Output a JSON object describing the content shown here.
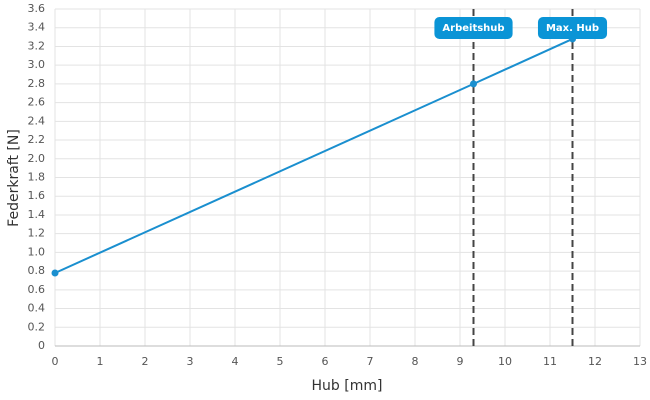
{
  "chart_data": {
    "type": "line",
    "x_label": "Hub [mm]",
    "y_label": "Federkraft [N]",
    "x": [
      0,
      9.3,
      11.5
    ],
    "values": [
      0.78,
      2.8,
      3.28
    ],
    "color": "#1a8fcf",
    "xlim": [
      0,
      13
    ],
    "xticks": [
      0,
      1,
      2,
      3,
      4,
      5,
      6,
      7,
      8,
      9,
      10,
      11,
      12,
      13
    ],
    "ylim": [
      0,
      3.6
    ],
    "yticks": [
      0,
      0.2,
      0.4,
      0.6,
      0.8,
      {
        "value": 1,
        "label": "1.0"
      },
      1.2,
      1.4,
      1.6,
      1.8,
      {
        "value": 2,
        "label": "2.0"
      },
      2.2,
      2.4,
      2.6,
      2.8,
      {
        "value": 3,
        "label": "3.0"
      },
      3.2,
      3.4,
      3.6
    ],
    "grid": true,
    "annotations": [
      {
        "x": 9.3,
        "label": "Arbeitshub"
      },
      {
        "x": 11.5,
        "label": "Max. Hub"
      }
    ]
  }
}
